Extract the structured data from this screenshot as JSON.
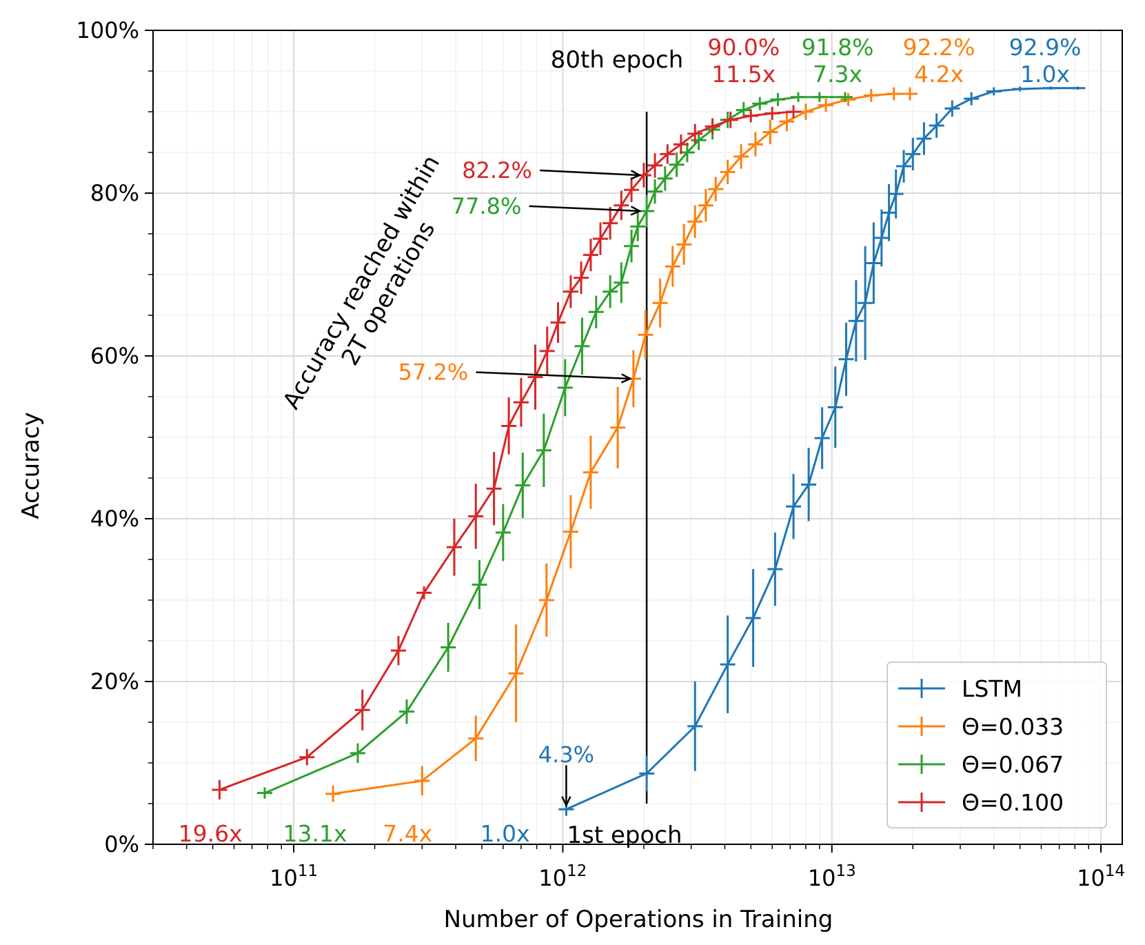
{
  "chart_data": {
    "type": "line",
    "xscale": "log",
    "xlim": [
      30000000000.0,
      120000000000000.0
    ],
    "ylim": [
      0,
      100
    ],
    "xlabel": "Number of Operations in Training",
    "ylabel": "Accuracy",
    "x_ticks": [
      {
        "value": 100000000000.0,
        "base": "10",
        "exp": "11"
      },
      {
        "value": 1000000000000.0,
        "base": "10",
        "exp": "12"
      },
      {
        "value": 10000000000000.0,
        "base": "10",
        "exp": "13"
      },
      {
        "value": 100000000000000.0,
        "base": "10",
        "exp": "14"
      }
    ],
    "y_ticks": [
      {
        "value": 0,
        "label": "0%"
      },
      {
        "value": 20,
        "label": "20%"
      },
      {
        "value": 40,
        "label": "40%"
      },
      {
        "value": 60,
        "label": "60%"
      },
      {
        "value": 80,
        "label": "80%"
      },
      {
        "value": 100,
        "label": "100%"
      }
    ],
    "grid": true,
    "legend_position": "bottom-right",
    "series": [
      {
        "name": "LSTM",
        "color": "#1f77b4",
        "points": [
          [
            1030000000000.0,
            4.3,
            0.8
          ],
          [
            2050000000000.0,
            8.7,
            2.2
          ],
          [
            3100000000000.0,
            14.5,
            5.5
          ],
          [
            4100000000000.0,
            22.1,
            6.0
          ],
          [
            5100000000000.0,
            27.8,
            6.0
          ],
          [
            6150000000000.0,
            33.8,
            4.5
          ],
          [
            7200000000000.0,
            41.5,
            4.0
          ],
          [
            8200000000000.0,
            44.2,
            4.5
          ],
          [
            9200000000000.0,
            49.9,
            3.8
          ],
          [
            10300000000000.0,
            53.7,
            5.0
          ],
          [
            11300000000000.0,
            59.6,
            4.5
          ],
          [
            12300000000000.0,
            64.3,
            5.0
          ],
          [
            13300000000000.0,
            66.5,
            7.0
          ],
          [
            14300000000000.0,
            71.4,
            5.0
          ],
          [
            15300000000000.0,
            74.5,
            3.5
          ],
          [
            16300000000000.0,
            77.6,
            3.5
          ],
          [
            17300000000000.0,
            79.9,
            3.0
          ],
          [
            18500000000000.0,
            83.3,
            2.0
          ],
          [
            20000000000000.0,
            84.8,
            2.0
          ],
          [
            22000000000000.0,
            86.7,
            2.0
          ],
          [
            24500000000000.0,
            88.3,
            1.5
          ],
          [
            28000000000000.0,
            90.4,
            1.0
          ],
          [
            33000000000000.0,
            91.6,
            0.8
          ],
          [
            40000000000000.0,
            92.5,
            0.5
          ],
          [
            50000000000000.0,
            92.8,
            0.3
          ],
          [
            65000000000000.0,
            92.9,
            0.2
          ],
          [
            82000000000000.0,
            92.9,
            0.2
          ]
        ]
      },
      {
        "name": "Θ=0.033",
        "color": "#ff7f0e",
        "points": [
          [
            140000000000.0,
            6.2,
            1.0
          ],
          [
            300000000000.0,
            7.8,
            1.8
          ],
          [
            475000000000.0,
            13.0,
            2.8
          ],
          [
            670000000000.0,
            21.0,
            6.0
          ],
          [
            870000000000.0,
            30.0,
            4.5
          ],
          [
            1070000000000.0,
            38.4,
            4.5
          ],
          [
            1270000000000.0,
            45.7,
            4.5
          ],
          [
            1600000000000.0,
            51.2,
            5.0
          ],
          [
            1830000000000.0,
            57.2,
            3.5
          ],
          [
            2030000000000.0,
            62.6,
            3.0
          ],
          [
            2300000000000.0,
            66.5,
            3.0
          ],
          [
            2560000000000.0,
            71.0,
            2.5
          ],
          [
            2820000000000.0,
            73.7,
            2.5
          ],
          [
            3100000000000.0,
            76.5,
            2.0
          ],
          [
            3400000000000.0,
            78.5,
            2.0
          ],
          [
            3700000000000.0,
            80.5,
            1.5
          ],
          [
            4100000000000.0,
            82.6,
            1.5
          ],
          [
            4600000000000.0,
            84.5,
            1.5
          ],
          [
            5200000000000.0,
            86.0,
            1.5
          ],
          [
            5900000000000.0,
            87.5,
            1.5
          ],
          [
            6800000000000.0,
            88.8,
            1.2
          ],
          [
            8000000000000.0,
            90.0,
            1.0
          ],
          [
            9500000000000.0,
            90.8,
            0.8
          ],
          [
            11500000000000.0,
            91.5,
            0.8
          ],
          [
            14000000000000.0,
            92.0,
            0.8
          ],
          [
            17000000000000.0,
            92.2,
            0.8
          ],
          [
            19500000000000.0,
            92.2,
            0.8
          ]
        ]
      },
      {
        "name": "Θ=0.067",
        "color": "#2ca02c",
        "points": [
          [
            78000000000.0,
            6.3,
            0.7
          ],
          [
            173000000000.0,
            11.2,
            1.2
          ],
          [
            263000000000.0,
            16.3,
            1.5
          ],
          [
            375000000000.0,
            24.2,
            3.0
          ],
          [
            490000000000.0,
            31.9,
            3.0
          ],
          [
            600000000000.0,
            38.3,
            3.5
          ],
          [
            710000000000.0,
            44.1,
            4.0
          ],
          [
            850000000000.0,
            48.4,
            4.5
          ],
          [
            1020000000000.0,
            56.1,
            3.5
          ],
          [
            1180000000000.0,
            61.2,
            3.5
          ],
          [
            1330000000000.0,
            65.4,
            2.0
          ],
          [
            1500000000000.0,
            67.9,
            2.0
          ],
          [
            1650000000000.0,
            69.0,
            2.5
          ],
          [
            1800000000000.0,
            73.5,
            2.0
          ],
          [
            1900000000000.0,
            75.9,
            1.8
          ],
          [
            2050000000000.0,
            77.8,
            2.0
          ],
          [
            2200000000000.0,
            80.2,
            1.5
          ],
          [
            2400000000000.0,
            81.8,
            1.5
          ],
          [
            2650000000000.0,
            83.5,
            1.5
          ],
          [
            2900000000000.0,
            85.0,
            1.2
          ],
          [
            3200000000000.0,
            86.5,
            1.2
          ],
          [
            3600000000000.0,
            87.8,
            1.2
          ],
          [
            4100000000000.0,
            89.0,
            1.0
          ],
          [
            4700000000000.0,
            90.2,
            1.0
          ],
          [
            5400000000000.0,
            91.0,
            0.8
          ],
          [
            6300000000000.0,
            91.5,
            0.8
          ],
          [
            7500000000000.0,
            91.8,
            0.6
          ],
          [
            9000000000000.0,
            91.8,
            0.6
          ],
          [
            11200000000000.0,
            91.8,
            0.6
          ]
        ]
      },
      {
        "name": "Θ=0.100",
        "color": "#d62728",
        "points": [
          [
            53000000000.0,
            6.7,
            1.2
          ],
          [
            112000000000.0,
            10.7,
            1.0
          ],
          [
            180000000000.0,
            16.5,
            2.5
          ],
          [
            245000000000.0,
            23.8,
            1.8
          ],
          [
            305000000000.0,
            30.9,
            0.8
          ],
          [
            395000000000.0,
            36.5,
            3.5
          ],
          [
            475000000000.0,
            40.3,
            4.0
          ],
          [
            555000000000.0,
            43.7,
            4.5
          ],
          [
            630000000000.0,
            51.4,
            3.5
          ],
          [
            700000000000.0,
            54.3,
            3.0
          ],
          [
            790000000000.0,
            57.4,
            4.0
          ],
          [
            875000000000.0,
            60.6,
            3.0
          ],
          [
            960000000000.0,
            64.1,
            2.5
          ],
          [
            1070000000000.0,
            67.9,
            2.0
          ],
          [
            1170000000000.0,
            69.6,
            2.0
          ],
          [
            1270000000000.0,
            72.4,
            2.0
          ],
          [
            1380000000000.0,
            74.4,
            2.0
          ],
          [
            1500000000000.0,
            76.3,
            2.0
          ],
          [
            1650000000000.0,
            78.5,
            1.8
          ],
          [
            1800000000000.0,
            80.4,
            1.5
          ],
          [
            2000000000000.0,
            82.2,
            1.5
          ],
          [
            2200000000000.0,
            83.4,
            1.5
          ],
          [
            2450000000000.0,
            84.8,
            1.2
          ],
          [
            2750000000000.0,
            86.0,
            1.2
          ],
          [
            3100000000000.0,
            87.3,
            1.2
          ],
          [
            3600000000000.0,
            88.2,
            1.0
          ],
          [
            4200000000000.0,
            89.0,
            1.0
          ],
          [
            5000000000000.0,
            89.5,
            0.8
          ],
          [
            6000000000000.0,
            89.8,
            0.8
          ],
          [
            7200000000000.0,
            90.0,
            0.8
          ]
        ]
      }
    ],
    "markers": {
      "epoch80_x": 2050000000000.0,
      "epoch80_ymin": 5,
      "epoch80_ymax": 90
    },
    "annotations": {
      "epoch80_label": "80th epoch",
      "epoch1_label": "1st epoch",
      "within_label_line1": "Accuracy reached within",
      "within_label_line2": "2T operations",
      "arrow_red": {
        "text": "82.2%",
        "color": "#d62728",
        "text_x": 570000000000.0,
        "text_y": 82.8,
        "tip_x": 1930000000000.0,
        "tip_y": 82.2
      },
      "arrow_green": {
        "text": "77.8%",
        "color": "#2ca02c",
        "text_x": 520000000000.0,
        "text_y": 78.4,
        "tip_x": 1930000000000.0,
        "tip_y": 77.8
      },
      "arrow_orange": {
        "text": "57.2%",
        "color": "#ff7f0e",
        "text_x": 330000000000.0,
        "text_y": 58.0,
        "tip_x": 1780000000000.0,
        "tip_y": 57.2
      },
      "arrow_blue": {
        "text": "4.3%",
        "color": "#1f77b4",
        "text_x": 1030000000000.0,
        "text_y": 11.0,
        "tip_x": 1030000000000.0,
        "tip_y": 4.8
      },
      "final": [
        {
          "acc": "90.0%",
          "speedup": "11.5x",
          "color": "#d62728",
          "x": 4700000000000.0
        },
        {
          "acc": "91.8%",
          "speedup": "7.3x",
          "color": "#2ca02c",
          "x": 10500000000000.0
        },
        {
          "acc": "92.2%",
          "speedup": "4.2x",
          "color": "#ff7f0e",
          "x": 25000000000000.0
        },
        {
          "acc": "92.9%",
          "speedup": "1.0x",
          "color": "#1f77b4",
          "x": 62000000000000.0
        }
      ],
      "initial": [
        {
          "speedup": "19.6x",
          "color": "#d62728",
          "x": 49000000000.0
        },
        {
          "speedup": "13.1x",
          "color": "#2ca02c",
          "x": 120000000000.0
        },
        {
          "speedup": "7.4x",
          "color": "#ff7f0e",
          "x": 265000000000.0
        },
        {
          "speedup": "1.0x",
          "color": "#1f77b4",
          "x": 610000000000.0
        }
      ]
    }
  }
}
